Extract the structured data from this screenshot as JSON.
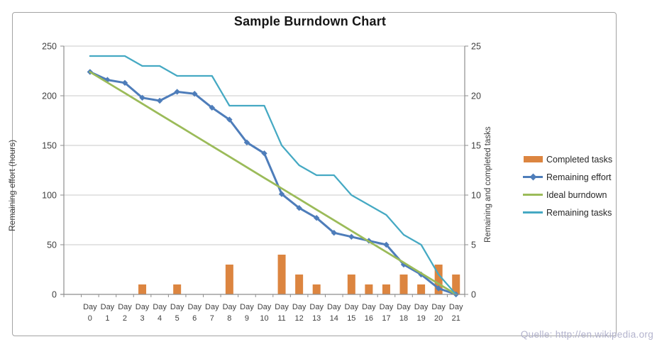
{
  "source_note": "Quelle: http://en.wikipedia.org",
  "colors": {
    "bars": "#DC8540",
    "effort_line": "#4E7DBA",
    "ideal_line": "#9BBB59",
    "tasks_line": "#45A9C3",
    "gridline": "#c9c9c9",
    "axis_line": "#8e8e8e",
    "tick_text": "#3f3f3f",
    "title_text": "#161616",
    "source_text": "#b3b3cd"
  },
  "chart_data": {
    "type": "bar",
    "subtype": "combo-bar-line",
    "title": "Sample Burndown Chart",
    "category_prefix": "Day",
    "categories": [
      "0",
      "1",
      "2",
      "3",
      "4",
      "5",
      "6",
      "7",
      "8",
      "9",
      "10",
      "11",
      "12",
      "13",
      "14",
      "15",
      "16",
      "17",
      "18",
      "19",
      "20",
      "21"
    ],
    "left_axis": {
      "label": "Remaining effort (hours)",
      "min": 0,
      "max": 250,
      "step": 50,
      "ticks": [
        "0",
        "50",
        "100",
        "150",
        "200",
        "250"
      ]
    },
    "right_axis": {
      "label": "Remaining and completed tasks",
      "min": 0,
      "max": 25,
      "step": 5,
      "ticks": [
        "0",
        "5",
        "10",
        "15",
        "20",
        "25"
      ]
    },
    "grid": true,
    "legend_position": "right",
    "series": [
      {
        "name": "Completed tasks",
        "type": "bar",
        "axis": "right",
        "color": "#DC8540",
        "values": [
          0,
          0,
          0,
          1,
          0,
          1,
          0,
          0,
          3,
          0,
          0,
          4,
          2,
          1,
          0,
          2,
          1,
          1,
          2,
          1,
          3,
          2
        ]
      },
      {
        "name": "Remaining effort",
        "type": "line",
        "marker": "diamond",
        "axis": "left",
        "color": "#4E7DBA",
        "values": [
          224,
          216,
          213,
          198,
          195,
          204,
          202,
          188,
          176,
          153,
          142,
          101,
          87,
          77,
          62,
          58,
          54,
          50,
          30,
          20,
          6,
          0
        ]
      },
      {
        "name": "Ideal burndown",
        "type": "line",
        "marker": "none",
        "axis": "left",
        "color": "#9BBB59",
        "values": [
          224,
          213.3,
          202.7,
          192,
          181.3,
          170.7,
          160,
          149.3,
          138.7,
          128,
          117.3,
          106.7,
          96,
          85.3,
          74.7,
          64,
          53.3,
          42.7,
          32,
          21.3,
          10.7,
          0
        ]
      },
      {
        "name": "Remaining tasks",
        "type": "line",
        "marker": "none",
        "axis": "right",
        "color": "#45A9C3",
        "values": [
          24,
          24,
          24,
          23,
          23,
          22,
          22,
          22,
          19,
          19,
          19,
          15,
          13,
          12,
          12,
          10,
          9,
          8,
          6,
          5,
          2,
          0
        ]
      }
    ]
  }
}
